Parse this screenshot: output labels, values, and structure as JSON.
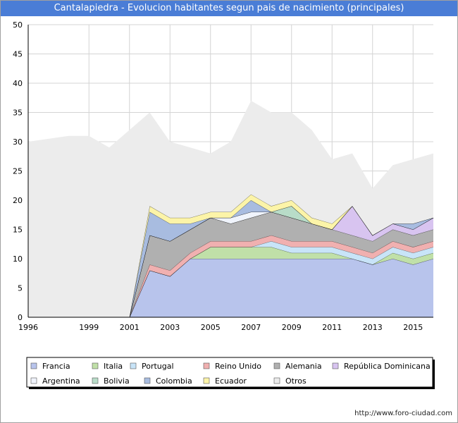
{
  "page": {
    "title": "Cantalapiedra - Evolucion habitantes segun pais de nacimiento (principales)",
    "footer": "http://www.foro-ciudad.com"
  },
  "chart_data": {
    "type": "area",
    "stacked": true,
    "title": "Cantalapiedra - Evolucion habitantes segun pais de nacimiento (principales)",
    "xlabel": "",
    "ylabel": "",
    "x": [
      1996,
      1998,
      1999,
      2000,
      2001,
      2002,
      2003,
      2004,
      2005,
      2006,
      2007,
      2008,
      2009,
      2010,
      2011,
      2012,
      2013,
      2014,
      2015,
      2016
    ],
    "xlim": [
      1996,
      2016
    ],
    "ylim": [
      0,
      50
    ],
    "xticks": [
      1996,
      1999,
      2001,
      2003,
      2005,
      2007,
      2009,
      2011,
      2013,
      2015
    ],
    "yticks": [
      0,
      5,
      10,
      15,
      20,
      25,
      30,
      35,
      40,
      45,
      50
    ],
    "grid": true,
    "legend_position": "bottom",
    "series": [
      {
        "name": "Francia",
        "color": "#b8c4ec",
        "values": [
          0,
          0,
          0,
          0,
          0,
          8,
          7,
          10,
          10,
          10,
          10,
          10,
          10,
          10,
          10,
          10,
          9,
          10,
          9,
          10
        ]
      },
      {
        "name": "Italia",
        "color": "#c0e0a8",
        "values": [
          0,
          0,
          0,
          0,
          0,
          0,
          0,
          0,
          2,
          2,
          2,
          2,
          1,
          1,
          1,
          0,
          0,
          1,
          1,
          1
        ]
      },
      {
        "name": "Portugal",
        "color": "#c8e4f8",
        "values": [
          0,
          0,
          0,
          0,
          0,
          0,
          0,
          0,
          0,
          0,
          0,
          1,
          1,
          1,
          1,
          1,
          1,
          1,
          1,
          1
        ]
      },
      {
        "name": "Reino Unido",
        "color": "#f0b0b0",
        "values": [
          0,
          0,
          0,
          0,
          0,
          1,
          1,
          1,
          1,
          1,
          1,
          1,
          1,
          1,
          1,
          1,
          1,
          1,
          1,
          1
        ]
      },
      {
        "name": "Alemania",
        "color": "#b0b0b0",
        "values": [
          0,
          0,
          0,
          0,
          0,
          5,
          5,
          4,
          4,
          3,
          4,
          4,
          4,
          3,
          2,
          2,
          2,
          2,
          2,
          2
        ]
      },
      {
        "name": "República Dominicana",
        "color": "#d8c4f0",
        "values": [
          0,
          0,
          0,
          0,
          0,
          0,
          0,
          0,
          0,
          0,
          0,
          0,
          0,
          0,
          0,
          5,
          1,
          1,
          1,
          2
        ]
      },
      {
        "name": "Argentina",
        "color": "#f0f4fc",
        "values": [
          0,
          0,
          0,
          0,
          0,
          0,
          0,
          0,
          0,
          1,
          1,
          0,
          0,
          0,
          0,
          0,
          0,
          0,
          0,
          0
        ]
      },
      {
        "name": "Bolivia",
        "color": "#b8dcc8",
        "values": [
          0,
          0,
          0,
          0,
          0,
          0,
          0,
          0,
          0,
          0,
          0,
          0,
          2,
          0,
          0,
          0,
          0,
          0,
          0,
          0
        ]
      },
      {
        "name": "Colombia",
        "color": "#a8bce0",
        "values": [
          0,
          0,
          0,
          0,
          0,
          4,
          3,
          1,
          0,
          0,
          2,
          0,
          0,
          0,
          0,
          0,
          0,
          0,
          1,
          0
        ]
      },
      {
        "name": "Ecuador",
        "color": "#fcf4a8",
        "values": [
          0,
          0,
          0,
          0,
          0,
          1,
          1,
          1,
          1,
          1,
          1,
          1,
          1,
          1,
          1,
          0,
          0,
          0,
          0,
          0
        ]
      },
      {
        "name": "Otros",
        "color": "#ececec",
        "values": [
          30,
          31,
          31,
          29,
          32,
          16,
          13,
          12,
          10,
          12,
          16,
          16,
          15,
          15,
          11,
          9,
          8,
          10,
          11,
          11
        ]
      }
    ]
  }
}
